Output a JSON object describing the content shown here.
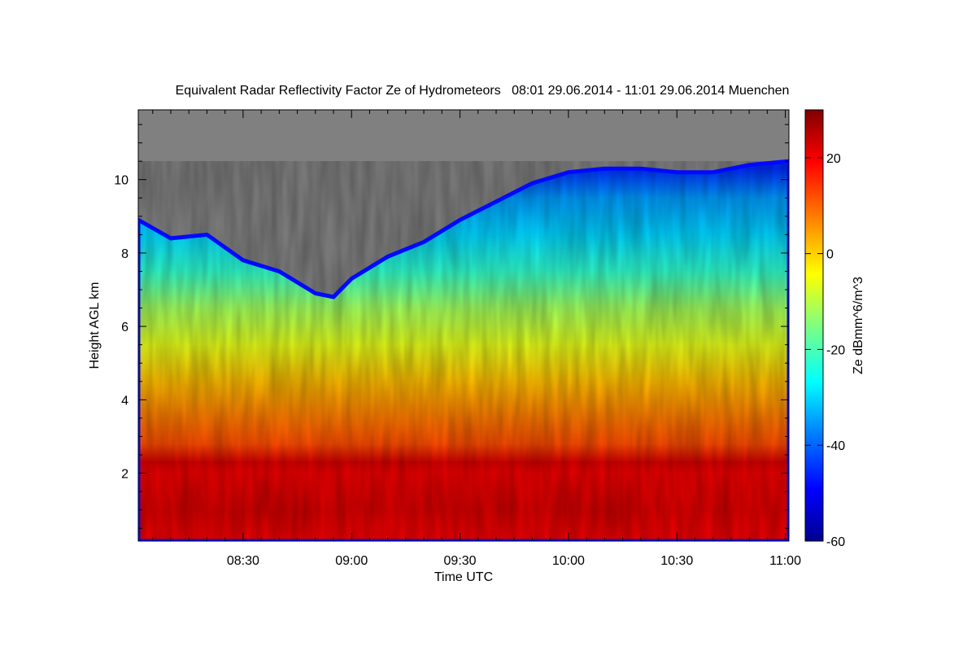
{
  "chart_data": {
    "type": "heatmap",
    "title": "Equivalent Radar Reflectivity Factor Ze of Hydrometeors   08:01 29.06.2014 - 11:01 29.06.2014 Muenchen",
    "xlabel": "Time UTC",
    "ylabel": "Height AGL km",
    "colorbar_label": "Ze dBmm^6/m^3",
    "x_range_utc": [
      "08:01",
      "11:01"
    ],
    "x_tick_labels": [
      "08:30",
      "09:00",
      "09:30",
      "10:00",
      "10:30",
      "11:00"
    ],
    "y_range_km": [
      0.15,
      11.9
    ],
    "y_tick_labels": [
      "2",
      "4",
      "6",
      "8",
      "10"
    ],
    "color_range_dbz": [
      -60,
      30
    ],
    "colorbar_tick_labels": [
      "20",
      "0",
      "-20",
      "-40",
      "-60"
    ],
    "colorscale": [
      "#00008f",
      "#0000ff",
      "#0080ff",
      "#00ffff",
      "#80ff80",
      "#ffff00",
      "#ff8000",
      "#ff0000",
      "#800000"
    ],
    "no_data_color": "#808080",
    "echo_top_km": [
      [
        "08:01",
        8.9
      ],
      [
        "08:10",
        8.4
      ],
      [
        "08:20",
        8.5
      ],
      [
        "08:30",
        7.8
      ],
      [
        "08:40",
        7.5
      ],
      [
        "08:50",
        6.9
      ],
      [
        "08:55",
        6.8
      ],
      [
        "09:00",
        7.3
      ],
      [
        "09:10",
        7.9
      ],
      [
        "09:20",
        8.3
      ],
      [
        "09:30",
        8.9
      ],
      [
        "09:40",
        9.4
      ],
      [
        "09:50",
        9.9
      ],
      [
        "10:00",
        10.2
      ],
      [
        "10:10",
        10.3
      ],
      [
        "10:20",
        10.3
      ],
      [
        "10:30",
        10.2
      ],
      [
        "10:40",
        10.2
      ],
      [
        "10:50",
        10.4
      ],
      [
        "11:01",
        10.5
      ]
    ],
    "ze_profile_dbz": [
      [
        "0.3",
        20
      ],
      [
        "1.0",
        22
      ],
      [
        "2.0",
        20
      ],
      [
        "2.3",
        22
      ],
      [
        "2.8",
        12
      ],
      [
        "3.5",
        8
      ],
      [
        "4.5",
        2
      ],
      [
        "5.5",
        -6
      ],
      [
        "6.5",
        -12
      ],
      [
        "7.5",
        -22
      ],
      [
        "8.5",
        -30
      ],
      [
        "9.5",
        -35
      ],
      [
        "10.3",
        -45
      ]
    ]
  }
}
